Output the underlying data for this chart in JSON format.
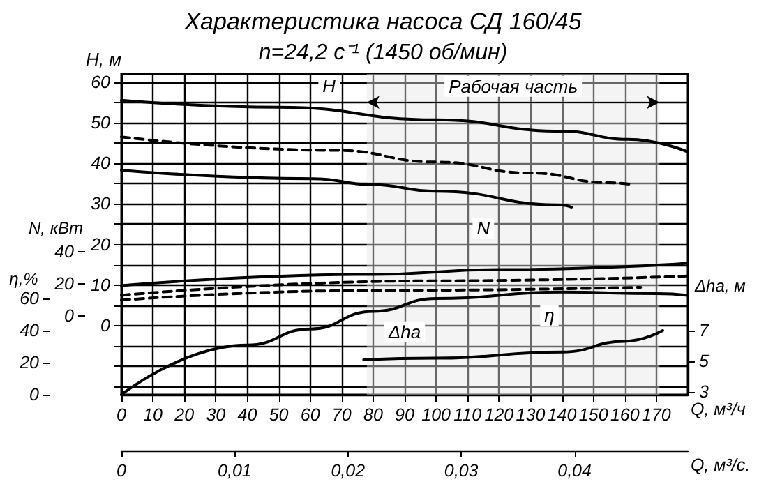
{
  "chart_data": [
    {
      "type": "line",
      "title": "Характеристика насоса СД 160/45",
      "subtitle": "n=24,2 с⁻¹ (1450 об/мин)",
      "xlabel": "Q, м³/ч",
      "x2label": "Q, м³/с.",
      "ylabel": "H, м",
      "y2label": "N, кВт",
      "y3label": "η,%",
      "xlim": [
        0,
        180
      ],
      "xticks": [
        0,
        10,
        20,
        30,
        40,
        50,
        60,
        70,
        80,
        90,
        100,
        110,
        120,
        130,
        140,
        150,
        160,
        170
      ],
      "x2lim": [
        0,
        0.05
      ],
      "x2ticks": [
        0,
        {
          "value": 0.01,
          "label": "0,01"
        },
        {
          "value": 0.02,
          "label": "0,02"
        },
        {
          "value": 0.03,
          "label": "0,03"
        },
        {
          "value": 0.04,
          "label": "0,04"
        }
      ],
      "ylim": [
        -17,
        62
      ],
      "yticks": [
        {
          "value": -15,
          "label": null
        },
        {
          "value": -10,
          "label": null
        },
        {
          "value": -5,
          "label": null
        },
        0,
        {
          "value": 5,
          "label": null
        },
        10,
        {
          "value": 15,
          "label": null
        },
        20,
        {
          "value": 25,
          "label": null
        },
        30,
        {
          "value": 35,
          "label": null
        },
        40,
        {
          "value": 45,
          "label": null
        },
        50,
        {
          "value": 55,
          "label": null
        },
        60
      ],
      "y2lim": [
        -49,
        151
      ],
      "y2ticks": [
        0,
        20,
        40
      ],
      "y3lim": [
        0,
        200
      ],
      "y3ticks": [
        0,
        20,
        40,
        60
      ],
      "grid": true,
      "series": [
        {
          "color": "#000000",
          "line_style": "solid",
          "x": [
            0,
            50,
            100,
            140,
            161,
            180
          ],
          "values": [
            55.5,
            53.8,
            50.7,
            47.9,
            45.9,
            42.8
          ]
        },
        {
          "color": "#000000",
          "line_style": "dashed",
          "x": [
            0,
            68,
            100,
            130,
            155,
            162
          ],
          "values": [
            46.5,
            43.2,
            40.3,
            37.6,
            35.2,
            34.8
          ]
        },
        {
          "color": "#000000",
          "line_style": "solid",
          "x": [
            0,
            61,
            79,
            100,
            140,
            143
          ],
          "values": [
            38.3,
            36.2,
            34.8,
            33.1,
            29.7,
            29.2
          ]
        },
        {
          "color": "#000000",
          "line_style": "solid",
          "axis": "y2",
          "x": [
            0,
            80,
            120,
            180
          ],
          "values": [
            19,
            26,
            29,
            33
          ]
        },
        {
          "color": "#000000",
          "line_style": "dashed",
          "axis": "y2",
          "x": [
            0,
            100,
            180
          ],
          "values": [
            13,
            22,
            25
          ]
        },
        {
          "color": "#000000",
          "line_style": "dashed",
          "axis": "y2",
          "x": [
            0,
            80,
            165
          ],
          "values": [
            10,
            16,
            18
          ]
        },
        {
          "color": "#000000",
          "line_style": "solid",
          "axis": "y3",
          "x": [
            0,
            40,
            60,
            80,
            100,
            140,
            170,
            180
          ],
          "values": [
            0,
            31,
            41,
            52,
            60,
            64,
            63,
            62
          ]
        }
      ],
      "bands": [
        {
          "axis": "x",
          "from": 78,
          "to": 171,
          "label": "Рабочая часть",
          "color": "#e6e6e6"
        }
      ],
      "annotations": [
        {
          "text": "H",
          "x": 66,
          "y": 59
        },
        {
          "text": "N",
          "x": 115,
          "y": 24
        },
        {
          "text": "η",
          "x": 136,
          "y": 2.5
        },
        {
          "text": "Δhа",
          "x": 90,
          "y": -1.5
        }
      ]
    },
    {
      "type": "line",
      "ylabel": "Δhа, м",
      "xlim": [
        0,
        180
      ],
      "ylim": [
        3,
        7
      ],
      "yticks": [
        3,
        5,
        7
      ],
      "tick_labels": "y",
      "series": [
        {
          "color": "#000000",
          "line_style": "solid",
          "x": [
            77,
            100,
            140,
            160,
            172
          ],
          "values": [
            5.1,
            5.2,
            5.6,
            6.3,
            7
          ]
        }
      ]
    }
  ]
}
